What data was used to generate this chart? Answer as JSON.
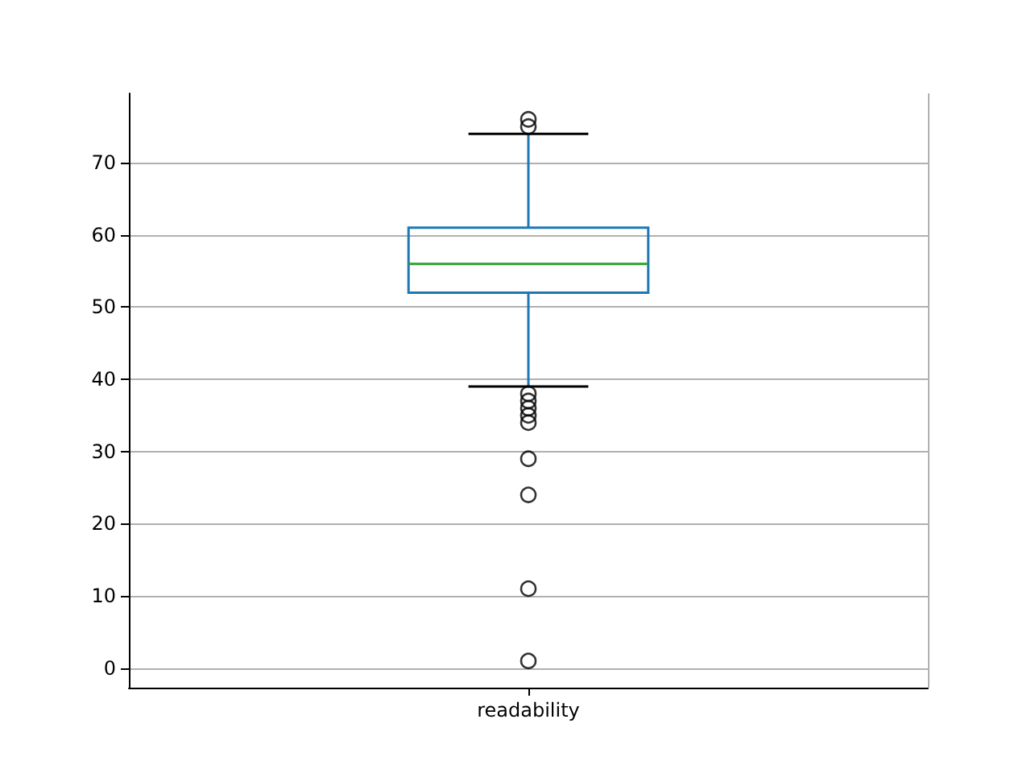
{
  "chart_data": {
    "type": "box",
    "categories": [
      "readability"
    ],
    "color": "#1f77b4",
    "boxes": [
      {
        "low": 39,
        "q1": 52,
        "median": 56,
        "q3": 61,
        "high": 74,
        "outliers": [
          76,
          75,
          38,
          37,
          36,
          35,
          34,
          29,
          24,
          11,
          1
        ]
      }
    ],
    "ylim": [
      -2.7,
      79.6
    ],
    "yticks": [
      0,
      10,
      20,
      30,
      40,
      50,
      60,
      70
    ],
    "grid": true,
    "marker": "circle"
  }
}
